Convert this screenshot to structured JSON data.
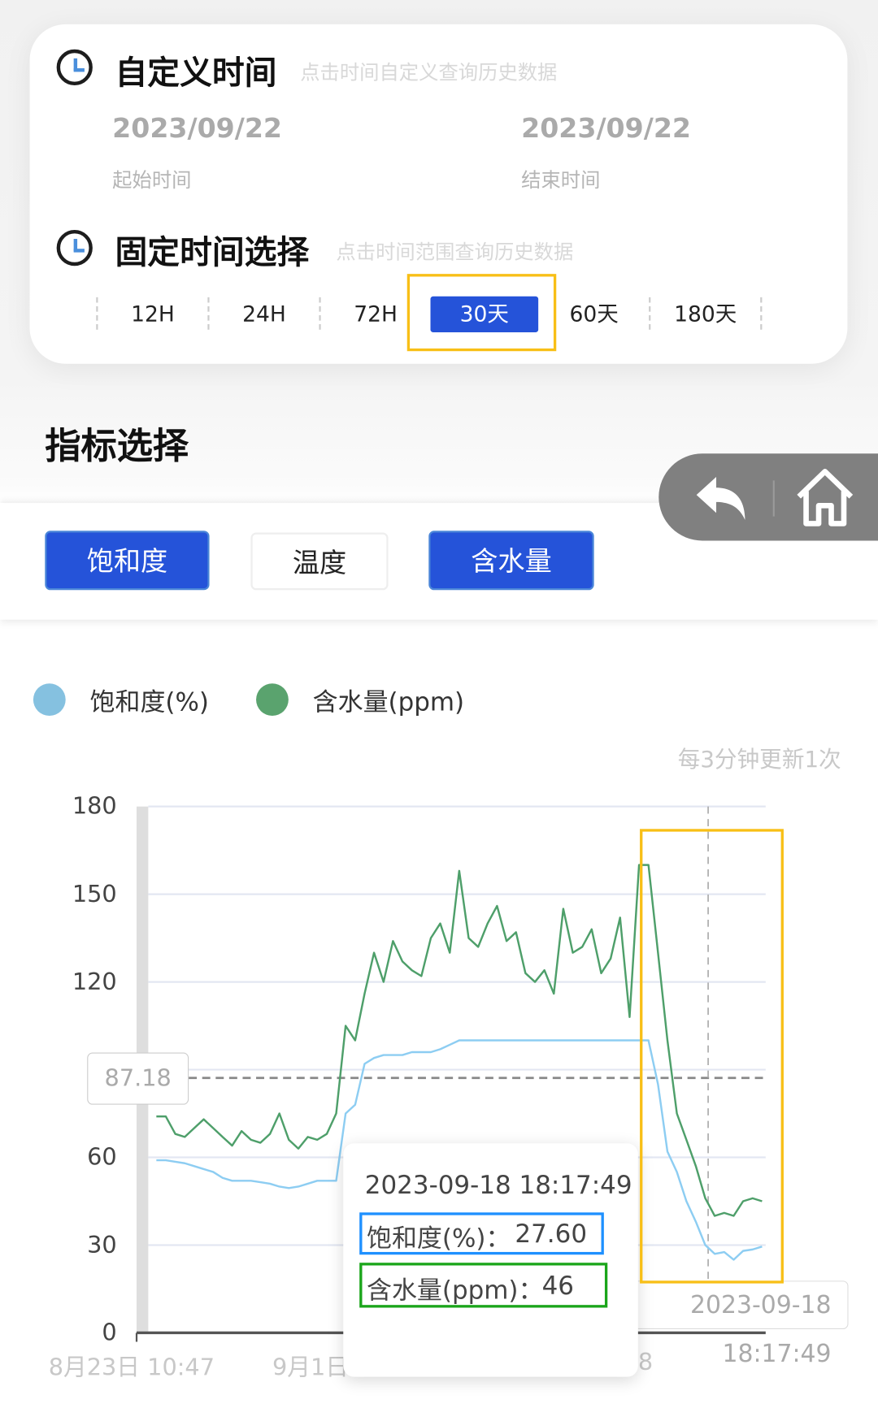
{
  "custom_time": {
    "title": "自定义时间",
    "hint": "点击时间自定义查询历史数据",
    "start_date": "2023/09/22",
    "start_label": "起始时间",
    "end_date": "2023/09/22",
    "end_label": "结束时间"
  },
  "fixed_time": {
    "title": "固定时间选择",
    "hint": "点击时间范围查询历史数据",
    "options": [
      "12H",
      "24H",
      "72H",
      "30天",
      "60天",
      "180天"
    ],
    "selected": "30天"
  },
  "metrics": {
    "title": "指标选择",
    "buttons": [
      {
        "label": "饱和度",
        "active": true
      },
      {
        "label": "温度",
        "active": false
      },
      {
        "label": "含水量",
        "active": true
      }
    ]
  },
  "nav": {
    "back_icon": "back-arrow-icon",
    "home_icon": "home-icon"
  },
  "colors": {
    "accent": "#2553d9",
    "saturation": "#8dcdf2",
    "water": "#4e9f6a",
    "highlight": "#f8bf16"
  },
  "chart_data": {
    "type": "line",
    "update_note": "每3分钟更新1次",
    "ylim": [
      0,
      180
    ],
    "yticks": [
      "0",
      "30",
      "60",
      "120",
      "150",
      "180"
    ],
    "xtick_labels": [
      "8月23日 10:47",
      "9月1日",
      "8"
    ],
    "grid": true,
    "legend_position": "top-left",
    "mark_line": {
      "value": 87.18,
      "label": "87.18"
    },
    "axis_pointer_label": "2023-09-18 18:17:49",
    "tooltip": {
      "time": "2023-09-18 18:17:49",
      "rows": [
        {
          "label": "饱和度(%)：",
          "value": "27.60"
        },
        {
          "label": "含水量(ppm)：",
          "value": "46"
        }
      ]
    },
    "x": [
      "2023-08-23 12:00",
      "2023-08-24 00:00",
      "2023-08-24 12:00",
      "2023-08-25 00:00",
      "2023-08-25 12:00",
      "2023-08-26 00:00",
      "2023-08-26 12:00",
      "2023-08-27 00:00",
      "2023-08-27 12:00",
      "2023-08-28 00:00",
      "2023-08-28 12:00",
      "2023-08-29 00:00",
      "2023-08-29 12:00",
      "2023-08-30 00:00",
      "2023-08-30 12:00",
      "2023-08-31 00:00",
      "2023-08-31 12:00",
      "2023-09-01 00:00",
      "2023-09-01 12:00",
      "2023-09-02 00:00",
      "2023-09-02 12:00",
      "2023-09-03 00:00",
      "2023-09-03 12:00",
      "2023-09-04 00:00",
      "2023-09-04 12:00",
      "2023-09-05 00:00",
      "2023-09-05 12:00",
      "2023-09-06 00:00",
      "2023-09-06 12:00",
      "2023-09-07 00:00",
      "2023-09-07 12:00",
      "2023-09-08 00:00",
      "2023-09-08 12:00",
      "2023-09-09 00:00",
      "2023-09-09 12:00",
      "2023-09-10 00:00",
      "2023-09-10 12:00",
      "2023-09-11 00:00",
      "2023-09-11 12:00",
      "2023-09-12 00:00",
      "2023-09-12 12:00",
      "2023-09-13 00:00",
      "2023-09-13 12:00",
      "2023-09-14 00:00",
      "2023-09-14 12:00",
      "2023-09-15 00:00",
      "2023-09-15 12:00",
      "2023-09-16 00:00",
      "2023-09-16 12:00",
      "2023-09-17 00:00",
      "2023-09-17 12:00",
      "2023-09-18 00:00",
      "2023-09-18 12:00",
      "2023-09-19 00:00",
      "2023-09-19 12:00",
      "2023-09-20 00:00",
      "2023-09-20 12:00",
      "2023-09-21 00:00",
      "2023-09-21 12:00",
      "2023-09-22 00:00",
      "2023-09-22 12:00",
      "2023-09-23 00:00",
      "2023-09-23 12:00",
      "2023-09-24 00:00",
      "2023-09-24 12:00"
    ],
    "series": [
      {
        "name": "饱和度(%)",
        "color": "#8dcdf2",
        "legend_color": "#85c1e0",
        "values": [
          59,
          59,
          58.5,
          58,
          57,
          56,
          55,
          53,
          52,
          52,
          52,
          51.5,
          51,
          50,
          49.5,
          50,
          51,
          52,
          52,
          52,
          75,
          78,
          92,
          94,
          95,
          95,
          95,
          96,
          96,
          96,
          97,
          98.5,
          100,
          100,
          100,
          100,
          100,
          100,
          100,
          100,
          100,
          100,
          100,
          100,
          100,
          100,
          100,
          100,
          100,
          100,
          100,
          100,
          100,
          85,
          62,
          55,
          45,
          38,
          30,
          27,
          27.6,
          25,
          28,
          28.5,
          29.5
        ]
      },
      {
        "name": "含水量(ppm)",
        "color": "#4e9f6a",
        "legend_color": "#5aa36e",
        "values": [
          74,
          74,
          68,
          67,
          70,
          73,
          70,
          67,
          64,
          69,
          66,
          65,
          68,
          75,
          66,
          63,
          67,
          66,
          68,
          75,
          105,
          100,
          116,
          130,
          120,
          134,
          127,
          124,
          122,
          135,
          140,
          130,
          158,
          135,
          132,
          140,
          146,
          134,
          137,
          123,
          120,
          124,
          116,
          145,
          130,
          132,
          138,
          123,
          128,
          142,
          108,
          160,
          160,
          130,
          100,
          75,
          66,
          57,
          46,
          40,
          41,
          40,
          45,
          46,
          45
        ]
      }
    ]
  }
}
